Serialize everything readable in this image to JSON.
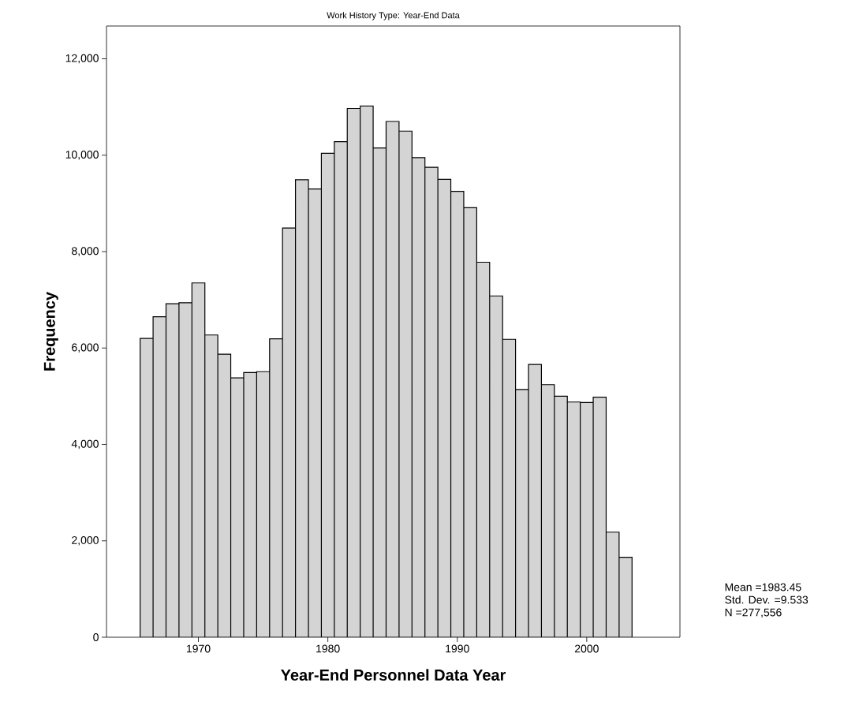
{
  "chart_data": {
    "type": "histogram",
    "title": "Work History Type: Year-End Data",
    "xlabel": "Year-End Personnel Data Year",
    "ylabel": "Frequency",
    "bins": [
      1965.5,
      1966.5,
      1967.5,
      1968.5,
      1969.5,
      1970.5,
      1971.5,
      1972.5,
      1973.5,
      1974.5,
      1975.5,
      1976.5,
      1977.5,
      1978.5,
      1979.5,
      1980.5,
      1981.5,
      1982.5,
      1983.5,
      1984.5,
      1985.5,
      1986.5,
      1987.5,
      1988.5,
      1989.5,
      1990.5,
      1991.5,
      1992.5,
      1993.5,
      1994.5,
      1995.5,
      1996.5,
      1997.5,
      1998.5,
      1999.5,
      2000.5,
      2001.5,
      2002.5,
      2003.5
    ],
    "values": [
      6200,
      6650,
      6920,
      6940,
      7350,
      6270,
      5870,
      5380,
      5490,
      5510,
      6190,
      8490,
      9490,
      9300,
      10040,
      10280,
      10970,
      11020,
      10150,
      10700,
      10500,
      9950,
      9750,
      9500,
      9250,
      8910,
      7780,
      7080,
      6180,
      5140,
      5660,
      5240,
      5000,
      4880,
      4870,
      4980,
      2180,
      1660
    ],
    "color": "#d4d4d4",
    "xlim": [
      1962.9,
      2007.2
    ],
    "xticks": [
      1970,
      1980,
      1990,
      2000
    ],
    "ylim": [
      0,
      12680
    ],
    "yticks": [
      0,
      {
        "value": 2000,
        "label": "2,000"
      },
      {
        "value": 4000,
        "label": "4,000"
      },
      {
        "value": 6000,
        "label": "6,000"
      },
      {
        "value": 8000,
        "label": "8,000"
      },
      {
        "value": 10000,
        "label": "10,000"
      },
      {
        "value": 12000,
        "label": "12,000"
      }
    ],
    "annotations": [
      "Mean =1983.45",
      "Std. Dev. =9.533",
      "N =277,556"
    ]
  }
}
